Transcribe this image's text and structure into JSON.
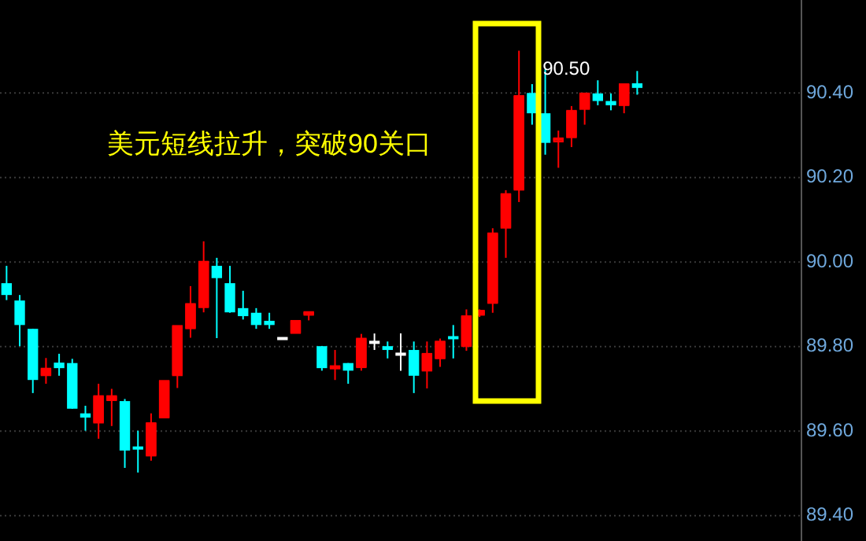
{
  "chart_data": {
    "type": "candlestick",
    "categories": [
      null,
      null,
      null,
      null,
      null,
      null,
      null,
      null,
      null,
      null,
      null,
      null,
      null,
      null,
      null,
      null,
      null,
      null,
      null,
      null,
      null,
      null,
      null,
      null,
      null,
      null,
      null,
      null,
      null,
      null,
      null,
      null,
      null,
      null,
      null,
      null,
      null,
      null,
      null,
      null,
      null,
      null,
      null,
      null,
      null,
      null,
      null,
      null,
      null,
      null,
      null,
      null,
      null,
      null,
      null,
      null,
      null,
      null,
      null,
      null,
      null
    ],
    "ohlc": [
      [
        89.95,
        89.991,
        89.91,
        89.922
      ],
      [
        89.909,
        89.922,
        89.801,
        89.851
      ],
      [
        89.842,
        89.842,
        89.69,
        89.721
      ],
      [
        89.732,
        89.773,
        89.712,
        89.748
      ],
      [
        89.762,
        89.783,
        89.731,
        89.749
      ],
      [
        89.761,
        89.771,
        89.653,
        89.653
      ],
      [
        89.642,
        89.66,
        89.601,
        89.632
      ],
      [
        89.62,
        89.712,
        89.582,
        89.683
      ],
      [
        89.673,
        89.7,
        89.612,
        89.683
      ],
      [
        89.671,
        89.676,
        89.513,
        89.554
      ],
      [
        89.56,
        89.601,
        89.502,
        89.554
      ],
      [
        89.542,
        89.642,
        89.53,
        89.619
      ],
      [
        89.632,
        89.719,
        89.632,
        89.719
      ],
      [
        89.732,
        89.849,
        89.702,
        89.849
      ],
      [
        89.843,
        89.943,
        89.821,
        89.901
      ],
      [
        89.893,
        90.049,
        89.881,
        90.001
      ],
      [
        89.991,
        90.01,
        89.82,
        89.962
      ],
      [
        89.95,
        89.991,
        89.88,
        89.881
      ],
      [
        89.891,
        89.932,
        89.864,
        89.872
      ],
      [
        89.88,
        89.891,
        89.842,
        89.851
      ],
      [
        89.861,
        89.88,
        89.842,
        89.851
      ],
      [
        89.819,
        89.819,
        89.819,
        89.819
      ],
      [
        89.832,
        89.861,
        89.832,
        89.861
      ],
      [
        89.875,
        89.88,
        89.862,
        89.88
      ],
      [
        89.801,
        89.801,
        89.743,
        89.749
      ],
      [
        89.748,
        89.792,
        89.721,
        89.752
      ],
      [
        89.761,
        89.761,
        89.712,
        89.743
      ],
      [
        89.751,
        89.83,
        89.743,
        89.819
      ],
      [
        89.81,
        89.831,
        89.792,
        89.81
      ],
      [
        89.801,
        89.812,
        89.772,
        89.792
      ],
      [
        89.782,
        89.831,
        89.743,
        89.782
      ],
      [
        89.792,
        89.812,
        89.69,
        89.731
      ],
      [
        89.743,
        89.812,
        89.701,
        89.783
      ],
      [
        89.772,
        89.819,
        89.752,
        89.812
      ],
      [
        89.821,
        89.851,
        89.772,
        89.814
      ],
      [
        89.801,
        89.888,
        89.79,
        89.872
      ],
      [
        89.875,
        89.888,
        89.87,
        89.885
      ],
      [
        89.903,
        90.08,
        89.88,
        90.068
      ],
      [
        90.081,
        90.17,
        90.01,
        90.161
      ],
      [
        90.171,
        90.5,
        90.142,
        90.393
      ],
      [
        90.4,
        90.421,
        90.325,
        90.352
      ],
      [
        90.352,
        90.456,
        90.254,
        90.282
      ],
      [
        90.285,
        90.311,
        90.223,
        90.291
      ],
      [
        90.295,
        90.369,
        90.272,
        90.358
      ],
      [
        90.362,
        90.399,
        90.325,
        90.399
      ],
      [
        90.399,
        90.43,
        90.371,
        90.381
      ],
      [
        90.381,
        90.399,
        90.359,
        90.371
      ],
      [
        90.371,
        90.421,
        90.352,
        90.421
      ],
      [
        90.423,
        90.452,
        90.396,
        90.412
      ],
      null,
      null,
      null,
      null,
      null,
      null,
      null,
      null,
      null,
      null,
      null,
      null
    ],
    "colors": [
      "#00ffff",
      "#00ffff",
      "#00ffff",
      "#ff0000",
      "#00ffff",
      "#00ffff",
      "#00ffff",
      "#ff0000",
      "#ff0000",
      "#00ffff",
      "#00ffff",
      "#ff0000",
      "#ff0000",
      "#ff0000",
      "#ff0000",
      "#ff0000",
      "#00ffff",
      "#00ffff",
      "#00ffff",
      "#00ffff",
      "#00ffff",
      "#ffffff",
      "#ff0000",
      "#ff0000",
      "#00ffff",
      "#ff0000",
      "#00ffff",
      "#ff0000",
      "#ffffff",
      "#00ffff",
      "#ffffff",
      "#00ffff",
      "#ff0000",
      "#ff0000",
      "#00ffff",
      "#ff0000",
      "#ff0000",
      "#ff0000",
      "#ff0000",
      "#ff0000",
      "#00ffff",
      "#00ffff",
      "#ff0000",
      "#ff0000",
      "#ff0000",
      "#00ffff",
      "#00ffff",
      "#ff0000",
      "#00ffff",
      null,
      null,
      null,
      null,
      null,
      null,
      null,
      null,
      null,
      null,
      null,
      null
    ],
    "ylim": [
      89.34,
      90.62
    ],
    "yticks": [
      {
        "value": 89.4,
        "label": "89.40"
      },
      {
        "value": 89.6,
        "label": "89.60"
      },
      {
        "value": 89.8,
        "label": "89.80"
      },
      {
        "value": 90.0,
        "label": "90.00"
      },
      {
        "value": 90.2,
        "label": "90.20"
      },
      {
        "value": 90.4,
        "label": "90.40"
      }
    ],
    "grid": "y",
    "tick_labels": "y",
    "annotations": [
      "美元短线拉升，突破90关口",
      "90.50"
    ]
  }
}
